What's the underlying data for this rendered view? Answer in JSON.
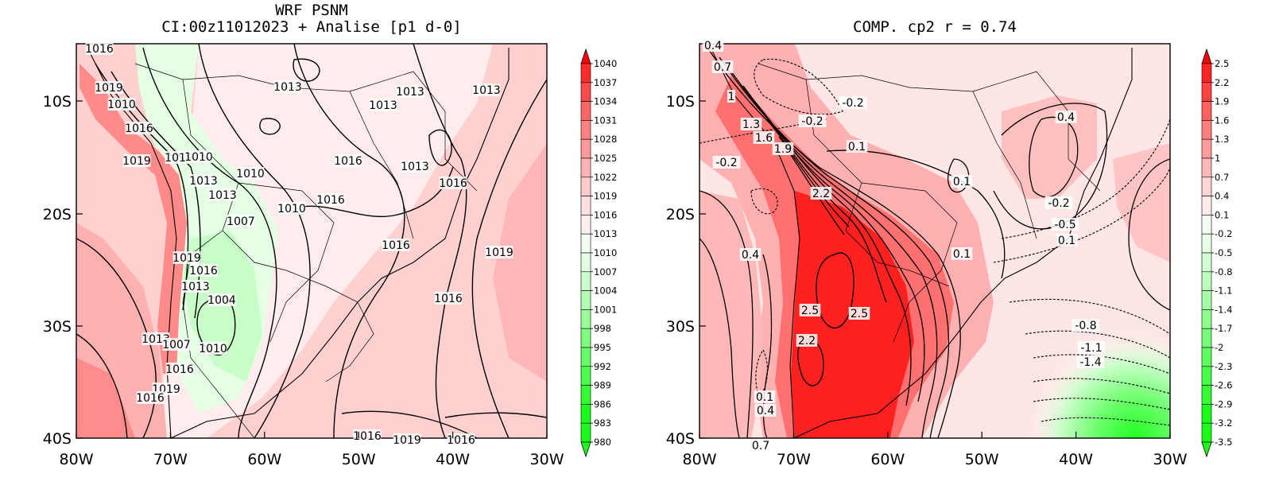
{
  "panels": [
    {
      "title_line1": "WRF PSNM",
      "title_line2": "CI:00z11012023 + Analise  [p1 d-0]",
      "lon_ticks": [
        "80W",
        "70W",
        "60W",
        "50W",
        "40W",
        "30W"
      ],
      "lat_ticks": [
        "10S",
        "20S",
        "30S",
        "40S"
      ],
      "colorbar_levels": [
        "1040",
        "1037",
        "1034",
        "1031",
        "1028",
        "1025",
        "1022",
        "1019",
        "1016",
        "1013",
        "1010",
        "1007",
        "1004",
        "1001",
        "998",
        "995",
        "992",
        "989",
        "986",
        "983",
        "980"
      ],
      "colorbar_colors": [
        "#ff0000",
        "#ff2a2a",
        "#ff4a4a",
        "#ff6666",
        "#ff8080",
        "#ff9a9a",
        "#ffb3b3",
        "#ffcccc",
        "#ffe0e0",
        "#fff0f0",
        "#f2fff2",
        "#e3ffe3",
        "#ccffcc",
        "#b3ffb3",
        "#99ff99",
        "#80ff80",
        "#66ff66",
        "#4dff4d",
        "#33ff33",
        "#1aff1a"
      ],
      "contour_labels": [
        "1016",
        "1019",
        "1010",
        "1016",
        "1019",
        "1019",
        "1010",
        "1013",
        "1013",
        "1010",
        "1007",
        "1010",
        "1013",
        "1013",
        "1013",
        "1013",
        "1016",
        "1013",
        "1016",
        "1016",
        "1016",
        "1019",
        "1019",
        "1016",
        "1013",
        "1004",
        "1016",
        "1013",
        "1007",
        "1010",
        "1016",
        "1019",
        "1016",
        "1016",
        "1019",
        "1016"
      ]
    },
    {
      "title_line1": "COMP. cp2  r =  0.74",
      "lon_ticks": [
        "80W",
        "70W",
        "60W",
        "50W",
        "40W",
        "30W"
      ],
      "lat_ticks": [
        "10S",
        "20S",
        "30S",
        "40S"
      ],
      "colorbar_levels": [
        "2.5",
        "2.2",
        "1.9",
        "1.6",
        "1.3",
        "1",
        "0.7",
        "0.4",
        "0.1",
        "-0.2",
        "-0.5",
        "-0.8",
        "-1.1",
        "-1.4",
        "-1.7",
        "-2",
        "-2.3",
        "-2.6",
        "-2.9",
        "-3.2",
        "-3.5"
      ],
      "colorbar_colors": [
        "#ff0000",
        "#ff2424",
        "#ff4242",
        "#ff6060",
        "#ff7e7e",
        "#ff9c9c",
        "#ffb8b8",
        "#ffd4d4",
        "#ffeded",
        "#f4fff4",
        "#e6ffe6",
        "#d2ffd2",
        "#bcffbc",
        "#a6ffa6",
        "#8fff8f",
        "#78ff78",
        "#60ff60",
        "#4aff4a",
        "#33ff33",
        "#1aff1a"
      ],
      "contour_labels": [
        "0.4",
        "0.7",
        "1",
        "1.3",
        "1.6",
        "1.9",
        "-0.2",
        "-0.2",
        "-0.2",
        "0.1",
        "2.2",
        "0.4",
        "2.5",
        "2.5",
        "2.2",
        "0.1",
        "0.4",
        "0.7",
        "0.1",
        "0.4",
        "0.1",
        "-0.2",
        "-0.5",
        "0.1",
        "-0.8",
        "-1.1",
        "-1.4"
      ]
    }
  ]
}
